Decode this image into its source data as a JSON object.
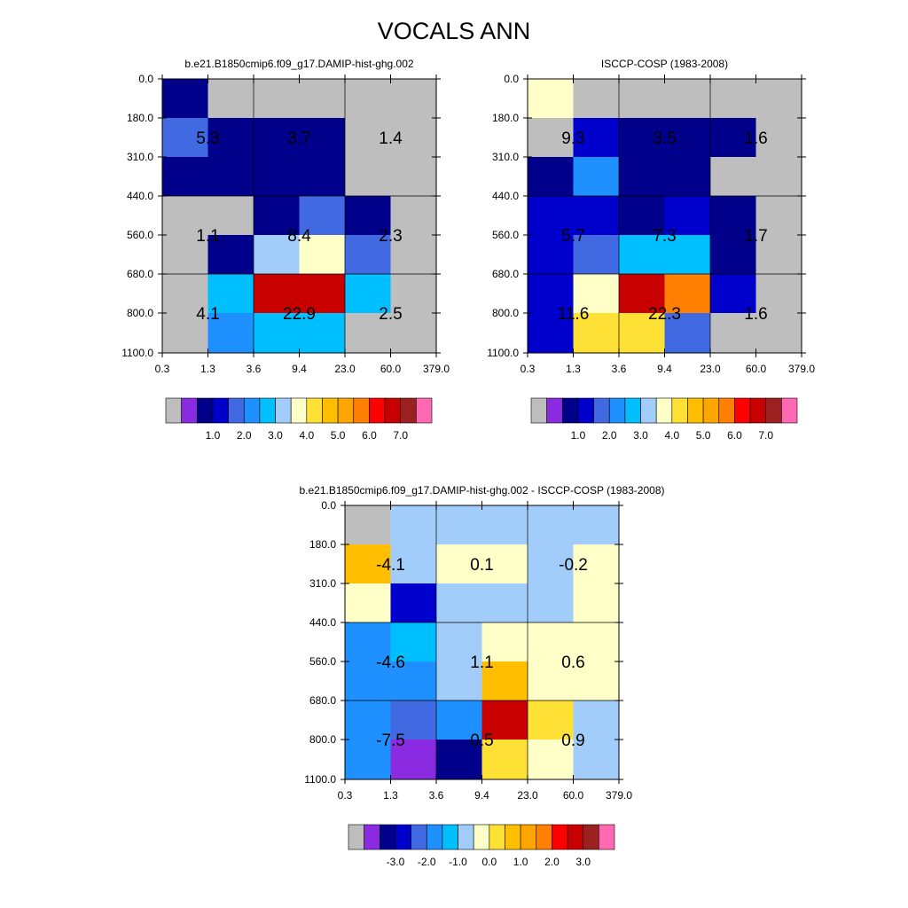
{
  "title": "VOCALS ANN",
  "chart_data": [
    {
      "type": "heatmap",
      "title": "b.e21.B1850cmip6.f09_g17.DAMIP-hist-ghg.002",
      "x_tick_labels": [
        "0.3",
        "1.3",
        "3.6",
        "9.4",
        "23.0",
        "60.0",
        "379.0"
      ],
      "y_tick_labels": [
        "0.0",
        "180.0",
        "310.0",
        "440.0",
        "560.0",
        "680.0",
        "800.0",
        "1100.0"
      ],
      "cells": [
        [
          1.0,
          0.0,
          0.0,
          0.0,
          0.0,
          0.0
        ],
        [
          2.0,
          1.0,
          1.0,
          1.0,
          0.0,
          0.0
        ],
        [
          1.0,
          1.0,
          1.0,
          1.0,
          0.0,
          0.0
        ],
        [
          0.0,
          0.0,
          1.0,
          2.0,
          1.0,
          0.0
        ],
        [
          0.0,
          1.0,
          3.5,
          4.0,
          2.0,
          0.0
        ],
        [
          0.0,
          3.0,
          7.5,
          7.5,
          3.0,
          0.0
        ],
        [
          0.0,
          2.5,
          3.0,
          3.0,
          0.0,
          0.0
        ]
      ],
      "block_totals": [
        [
          "5.3",
          "3.7",
          "1.4"
        ],
        [
          "1.1",
          "8.4",
          "2.3"
        ],
        [
          "4.1",
          "22.9",
          "2.5"
        ]
      ],
      "colorbar": {
        "labels": [
          "1.0",
          "2.0",
          "3.0",
          "4.0",
          "5.0",
          "6.0",
          "7.0"
        ],
        "levels": [
          0.5,
          1,
          1.5,
          2,
          2.5,
          3,
          3.5,
          4,
          4.5,
          5,
          5.5,
          6,
          6.5,
          7
        ]
      }
    },
    {
      "type": "heatmap",
      "title": "ISCCP-COSP (1983-2008)",
      "x_tick_labels": [
        "0.3",
        "1.3",
        "3.6",
        "9.4",
        "23.0",
        "60.0",
        "379.0"
      ],
      "y_tick_labels": [
        "0.0",
        "180.0",
        "310.0",
        "440.0",
        "560.0",
        "680.0",
        "800.0",
        "1100.0"
      ],
      "cells": [
        [
          4.2,
          0.0,
          0.0,
          0.0,
          0.0,
          0.0
        ],
        [
          0.0,
          1.5,
          1.0,
          1.0,
          1.0,
          0.0
        ],
        [
          1.0,
          2.5,
          1.0,
          1.0,
          0.0,
          0.0
        ],
        [
          1.5,
          1.5,
          1.0,
          1.5,
          1.0,
          0.0
        ],
        [
          1.5,
          2.0,
          3.0,
          3.0,
          1.0,
          0.0
        ],
        [
          1.5,
          4.2,
          7.5,
          6.0,
          1.5,
          0.0
        ],
        [
          1.5,
          4.5,
          4.5,
          2.0,
          0.0,
          0.0
        ]
      ],
      "block_totals": [
        [
          "9.3",
          "3.5",
          "1.6"
        ],
        [
          "5.7",
          "7.3",
          "1.7"
        ],
        [
          "11.6",
          "22.3",
          "1.6"
        ]
      ],
      "colorbar": {
        "labels": [
          "1.0",
          "2.0",
          "3.0",
          "4.0",
          "5.0",
          "6.0",
          "7.0"
        ],
        "levels": [
          0.5,
          1,
          1.5,
          2,
          2.5,
          3,
          3.5,
          4,
          4.5,
          5,
          5.5,
          6,
          6.5,
          7
        ]
      }
    },
    {
      "type": "heatmap",
      "title": "b.e21.B1850cmip6.f09_g17.DAMIP-hist-ghg.002 - ISCCP-COSP (1983-2008)",
      "x_tick_labels": [
        "0.3",
        "1.3",
        "3.6",
        "9.4",
        "23.0",
        "60.0",
        "379.0"
      ],
      "y_tick_labels": [
        "0.0",
        "180.0",
        "310.0",
        "440.0",
        "560.0",
        "680.0",
        "800.0",
        "1100.0"
      ],
      "cells": [
        [
          -5.0,
          -0.2,
          -0.2,
          -0.2,
          -0.2,
          -0.2
        ],
        [
          1.2,
          -0.2,
          0.2,
          0.2,
          -0.2,
          0.2
        ],
        [
          0.2,
          -2.2,
          -0.2,
          -0.2,
          -0.2,
          0.2
        ],
        [
          -1.2,
          -0.8,
          -0.2,
          0.2,
          0.2,
          0.2
        ],
        [
          -1.2,
          -1.2,
          -0.2,
          1.2,
          0.2,
          0.2
        ],
        [
          -1.2,
          -1.8,
          -1.2,
          3.8,
          0.8,
          -0.2
        ],
        [
          -1.2,
          -3.2,
          -2.8,
          0.8,
          0.2,
          -0.2
        ]
      ],
      "block_totals": [
        [
          "-4.1",
          "0.1",
          "-0.2"
        ],
        [
          "-4.6",
          "1.1",
          "0.6"
        ],
        [
          "-7.5",
          "0.5",
          "0.9"
        ]
      ],
      "colorbar": {
        "labels": [
          "-3.0",
          "-2.0",
          "-1.0",
          "0.0",
          "1.0",
          "2.0",
          "3.0"
        ],
        "levels": [
          -3.5,
          -3,
          -2.5,
          -2,
          -1.5,
          -1,
          -0.5,
          0,
          0.5,
          1,
          1.5,
          2,
          2.5,
          3.5
        ]
      }
    }
  ],
  "colors": {
    "palette": [
      "#bebebe",
      "#8a2be2",
      "#00008b",
      "#0000cd",
      "#4169e1",
      "#1e90ff",
      "#00bfff",
      "#a2cdfa",
      "#ffffc8",
      "#ffe135",
      "#ffbf00",
      "#ffa500",
      "#ff7f00",
      "#ff0000",
      "#c80000",
      "#9b2020",
      "#ff69b4"
    ]
  }
}
